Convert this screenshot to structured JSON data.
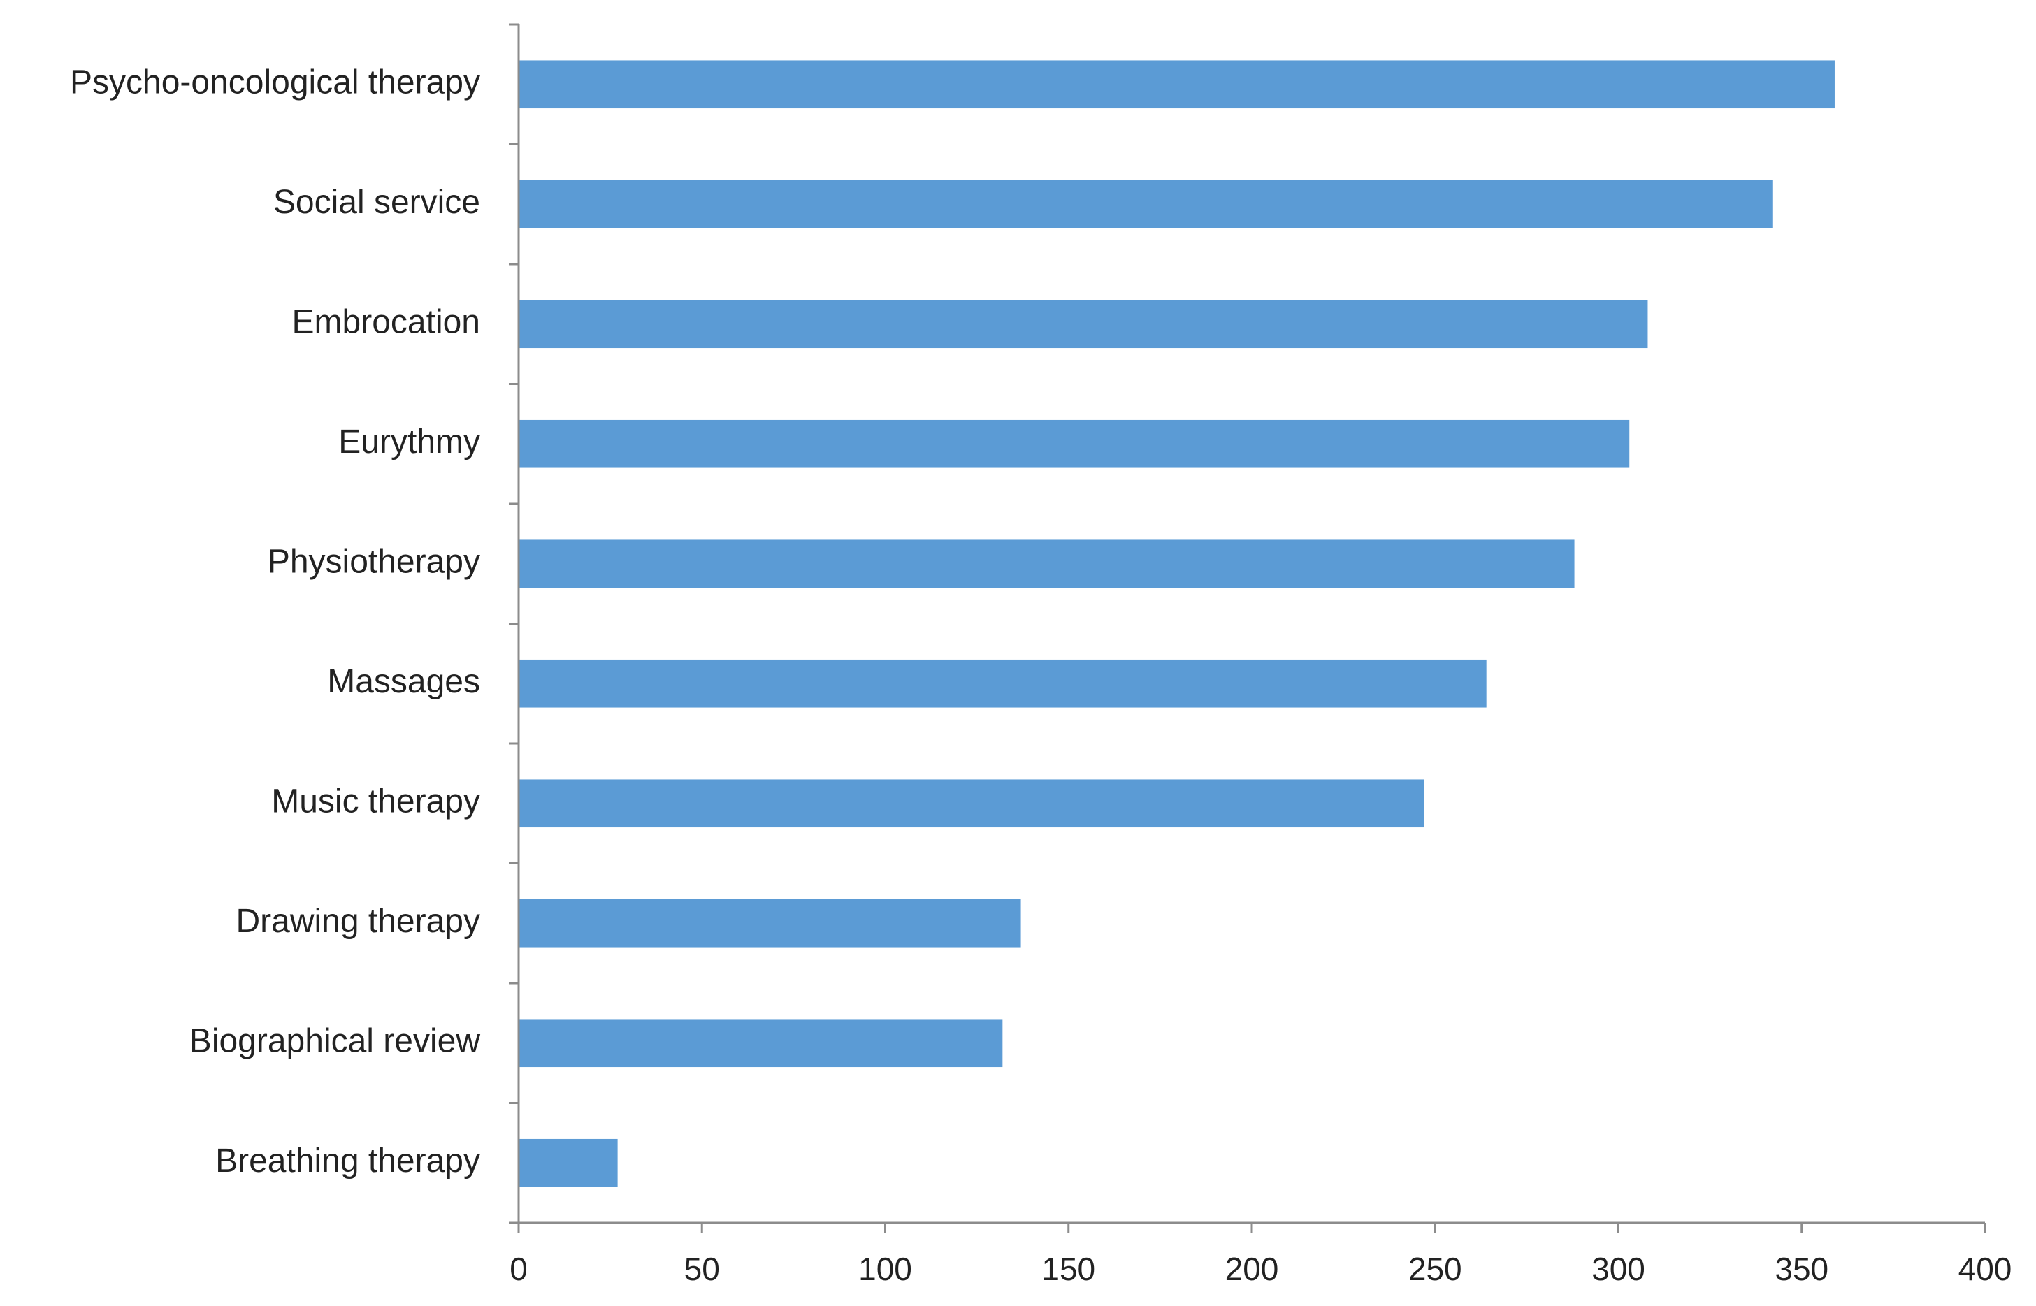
{
  "chart_data": {
    "type": "bar",
    "orientation": "horizontal",
    "categories": [
      "Psycho-oncological therapy",
      "Social service",
      "Embrocation",
      "Eurythmy",
      "Physiotherapy",
      "Massages",
      "Music therapy",
      "Drawing therapy",
      "Biographical review",
      "Breathing therapy"
    ],
    "values": [
      359,
      342,
      308,
      303,
      288,
      264,
      247,
      137,
      132,
      27
    ],
    "xlim": [
      0,
      400
    ],
    "xticks": [
      "0",
      "50",
      "100",
      "150",
      "200",
      "250",
      "300",
      "350",
      "400"
    ],
    "title": "",
    "xlabel": "",
    "ylabel": "",
    "grid": false,
    "legend": "none",
    "colors": {
      "bar": "#5b9bd5",
      "axis": "#8c8c8c",
      "text": "#222222"
    }
  }
}
